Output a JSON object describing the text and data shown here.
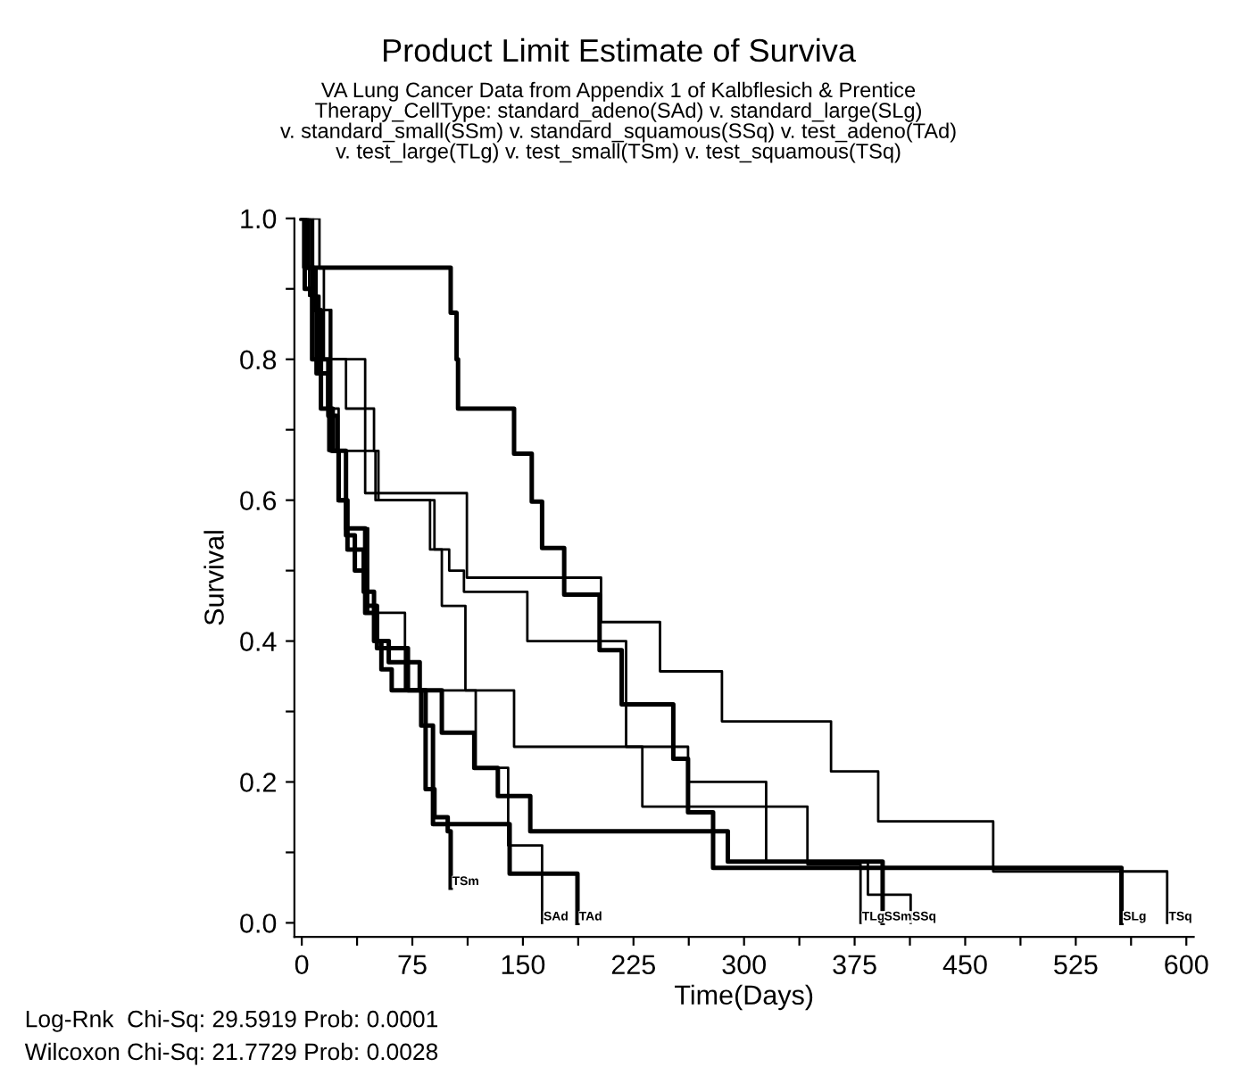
{
  "chart_data": {
    "type": "step",
    "title": "Product Limit Estimate of Surviva",
    "subtitle": "VA Lung Cancer Data from Appendix 1 of Kalbflesich & Prentice\nTherapy_CellType: standard_adeno(SAd) v. standard_large(SLg)\nv. standard_small(SSm) v. standard_squamous(SSq) v. test_adeno(TAd)\nv. test_large(TLg) v. test_small(TSm) v. test_squamous(TSq)",
    "xlabel": "Time(Days)",
    "ylabel": "Survival",
    "annotations": [
      "Log-Rnk  Chi-Sq: 29.5919 Prob: 0.0001",
      "Wilcoxon Chi-Sq: 21.7729 Prob: 0.0028"
    ],
    "xlim": [
      -5,
      605
    ],
    "ylim": [
      -0.02,
      1.0
    ],
    "xticks": [
      0,
      {
        "value": 37.5,
        "label": null
      },
      75,
      {
        "value": 112.5,
        "label": null
      },
      150,
      {
        "value": 187.5,
        "label": null
      },
      225,
      {
        "value": 262.5,
        "label": null
      },
      300,
      {
        "value": 337.5,
        "label": null
      },
      375,
      {
        "value": 412.5,
        "label": null
      },
      450,
      {
        "value": 487.5,
        "label": null
      },
      525,
      {
        "value": 562.5,
        "label": null
      },
      600
    ],
    "yticks": [
      {
        "value": 0.0,
        "label": "0.0"
      },
      {
        "value": 0.1,
        "label": null
      },
      {
        "value": 0.2,
        "label": "0.2"
      },
      {
        "value": 0.3,
        "label": null
      },
      {
        "value": 0.4,
        "label": "0.4"
      },
      {
        "value": 0.5,
        "label": null
      },
      {
        "value": 0.6,
        "label": "0.6"
      },
      {
        "value": 0.7,
        "label": null
      },
      {
        "value": 0.8,
        "label": "0.8"
      },
      {
        "value": 0.9,
        "label": null
      },
      {
        "value": 1.0,
        "label": "1.0"
      }
    ],
    "grid": false,
    "series": [
      {
        "name": "TSm",
        "color": "#000000",
        "x": [
          0,
          2,
          8,
          13,
          18,
          21,
          25,
          30,
          36,
          44,
          51,
          54,
          61,
          81,
          84,
          90,
          99,
          101
        ],
        "values": [
          1,
          0.93,
          0.87,
          0.8,
          0.73,
          0.67,
          0.6,
          0.55,
          0.5,
          0.45,
          0.4,
          0.36,
          0.33,
          0.28,
          0.19,
          0.15,
          0.13,
          0.05
        ]
      },
      {
        "name": "SAd",
        "color": "#000000",
        "x": [
          0,
          5,
          12,
          18,
          30,
          45,
          70,
          118,
          140,
          163
        ],
        "values": [
          1,
          0.89,
          0.78,
          0.67,
          0.56,
          0.44,
          0.33,
          0.22,
          0.11,
          0
        ]
      },
      {
        "name": "TAd",
        "color": "#000000",
        "x": [
          0,
          7,
          10,
          18,
          24,
          30,
          43,
          51,
          72,
          84,
          89,
          141,
          187
        ],
        "values": [
          1,
          0.89,
          0.78,
          0.72,
          0.67,
          0.56,
          0.44,
          0.39,
          0.33,
          0.28,
          0.14,
          0.07,
          0
        ]
      },
      {
        "name": "TLg",
        "color": "#000000",
        "x": [
          0,
          12,
          15,
          19,
          43,
          49,
          52,
          87,
          95,
          111,
          144,
          231,
          343,
          379
        ],
        "values": [
          1,
          0.93,
          0.87,
          0.8,
          0.73,
          0.67,
          0.6,
          0.53,
          0.45,
          0.33,
          0.25,
          0.165,
          0.083,
          0
        ]
      },
      {
        "name": "SSm",
        "color": "#000000",
        "x": [
          0,
          2,
          7,
          13,
          20,
          25,
          31,
          42,
          49,
          59,
          80,
          95,
          117,
          133,
          155,
          289,
          394
        ],
        "values": [
          1,
          0.9,
          0.8,
          0.73,
          0.67,
          0.6,
          0.53,
          0.47,
          0.4,
          0.37,
          0.33,
          0.27,
          0.22,
          0.18,
          0.13,
          0.087,
          0
        ]
      },
      {
        "name": "SSq",
        "color": "#000000",
        "x": [
          0,
          4,
          10,
          15,
          20,
          25,
          50,
          90,
          100,
          110,
          153,
          220,
          262,
          315,
          384,
          413
        ],
        "values": [
          1,
          0.93,
          0.87,
          0.8,
          0.73,
          0.67,
          0.6,
          0.53,
          0.5,
          0.47,
          0.4,
          0.25,
          0.2,
          0.087,
          0.04,
          0
        ]
      },
      {
        "name": "SLg",
        "color": "#000000",
        "x": [
          0,
          3,
          101,
          105,
          106,
          144,
          156,
          163,
          178,
          202,
          217,
          252,
          262,
          279,
          556
        ],
        "values": [
          1,
          0.93,
          0.866,
          0.8,
          0.73,
          0.666,
          0.598,
          0.532,
          0.466,
          0.387,
          0.31,
          0.233,
          0.157,
          0.078,
          0
        ]
      },
      {
        "name": "TSq",
        "color": "#000000",
        "x": [
          0,
          1,
          10,
          20,
          30,
          43,
          112,
          203,
          243,
          285,
          359,
          391,
          469,
          587
        ],
        "values": [
          1,
          0.93,
          0.87,
          0.8,
          0.73,
          0.61,
          0.49,
          0.427,
          0.357,
          0.286,
          0.215,
          0.144,
          0.073,
          0
        ]
      }
    ]
  }
}
